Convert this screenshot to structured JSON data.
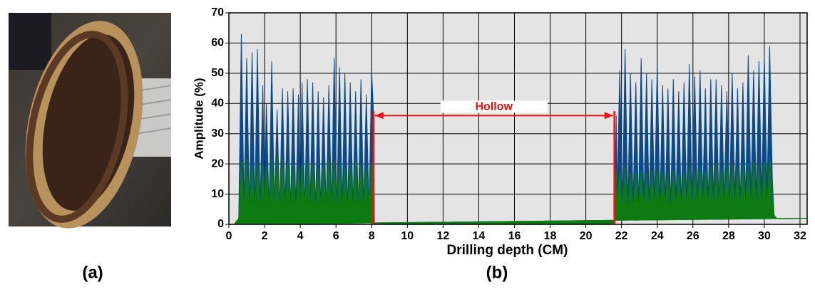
{
  "panels": {
    "a": "(a)",
    "b": "(b)"
  },
  "chart_data": {
    "type": "area",
    "xlabel": "Drilling depth (CM)",
    "ylabel": "Amplitude (%)",
    "xlim": [
      0,
      32.4
    ],
    "ylim": [
      0,
      70
    ],
    "xticks": [
      0,
      2,
      4,
      6,
      8,
      10,
      12,
      14,
      16,
      18,
      20,
      22,
      24,
      26,
      28,
      30,
      32
    ],
    "yticks": [
      0,
      10,
      20,
      30,
      40,
      50,
      60,
      70
    ],
    "grid": true,
    "background": "#e4e4e4",
    "x": [
      0.3,
      0.55,
      0.7,
      0.85,
      1.0,
      1.15,
      1.3,
      1.45,
      1.6,
      1.75,
      1.9,
      2.0,
      2.1,
      2.25,
      2.4,
      2.55,
      2.7,
      2.85,
      3.0,
      3.15,
      3.3,
      3.45,
      3.6,
      3.75,
      3.9,
      4.0,
      4.1,
      4.25,
      4.4,
      4.55,
      4.7,
      4.85,
      5.0,
      5.15,
      5.3,
      5.45,
      5.6,
      5.75,
      5.9,
      6.05,
      6.2,
      6.35,
      6.5,
      6.65,
      6.8,
      6.95,
      7.1,
      7.25,
      7.4,
      7.55,
      7.7,
      7.85,
      8.0,
      8.1,
      8.15,
      21.6,
      21.7,
      21.75,
      21.9,
      22.05,
      22.2,
      22.35,
      22.5,
      22.65,
      22.8,
      22.95,
      23.1,
      23.25,
      23.4,
      23.55,
      23.7,
      23.85,
      24.0,
      24.15,
      24.3,
      24.45,
      24.6,
      24.75,
      24.9,
      25.05,
      25.2,
      25.35,
      25.5,
      25.65,
      25.8,
      25.95,
      26.1,
      26.25,
      26.4,
      26.55,
      26.7,
      26.85,
      27.0,
      27.15,
      27.3,
      27.45,
      27.6,
      27.75,
      27.9,
      28.05,
      28.2,
      28.35,
      28.5,
      28.65,
      28.8,
      28.95,
      29.1,
      29.25,
      29.4,
      29.55,
      29.7,
      29.85,
      30.0,
      30.15,
      30.3,
      30.45,
      30.55,
      30.7,
      32.4
    ],
    "series": [
      {
        "color": "#0b4a8a",
        "values": [
          0,
          2,
          63,
          6,
          55,
          5,
          57,
          5,
          58,
          6,
          46,
          8,
          40,
          5,
          54,
          6,
          38,
          5,
          45,
          6,
          44,
          5,
          45,
          6,
          43,
          7,
          47,
          5,
          48,
          6,
          47,
          5,
          44,
          6,
          42,
          5,
          46,
          6,
          55,
          5,
          52,
          6,
          50,
          5,
          47,
          6,
          44,
          5,
          48,
          6,
          43,
          5,
          51,
          37,
          0,
          0,
          36,
          10,
          51,
          7,
          58,
          6,
          50,
          7,
          47,
          6,
          55,
          7,
          50,
          6,
          48,
          7,
          53,
          6,
          46,
          7,
          45,
          6,
          48,
          7,
          44,
          6,
          47,
          7,
          53,
          8,
          49,
          7,
          51,
          8,
          45,
          7,
          48,
          8,
          48,
          7,
          46,
          8,
          44,
          7,
          50,
          8,
          45,
          7,
          47,
          8,
          56,
          9,
          51,
          8,
          54,
          9,
          56,
          10,
          59,
          15,
          3,
          2,
          2
        ]
      },
      {
        "color": "#0e7a12",
        "values": [
          0,
          2,
          21,
          5,
          22,
          5,
          20,
          5,
          21,
          5,
          20,
          6,
          19,
          5,
          22,
          5,
          23,
          5,
          22,
          5,
          21,
          5,
          20,
          5,
          19,
          6,
          20,
          5,
          21,
          5,
          20,
          5,
          19,
          5,
          20,
          5,
          22,
          5,
          21,
          5,
          20,
          5,
          19,
          5,
          20,
          5,
          21,
          5,
          20,
          5,
          19,
          5,
          20,
          18,
          0,
          0,
          18,
          6,
          18,
          5,
          19,
          5,
          17,
          5,
          18,
          5,
          18,
          6,
          17,
          5,
          18,
          6,
          19,
          5,
          18,
          6,
          17,
          5,
          18,
          6,
          17,
          6,
          18,
          6,
          19,
          6,
          18,
          6,
          19,
          6,
          18,
          6,
          19,
          6,
          20,
          6,
          19,
          6,
          20,
          6,
          20,
          6,
          19,
          6,
          20,
          6,
          20,
          6,
          21,
          6,
          20,
          6,
          21,
          6,
          22,
          10,
          3,
          2,
          2
        ]
      }
    ],
    "annotation": {
      "text": "Hollow",
      "start": 8.1,
      "end": 21.6,
      "y": 36,
      "color": "#ee1111"
    }
  }
}
